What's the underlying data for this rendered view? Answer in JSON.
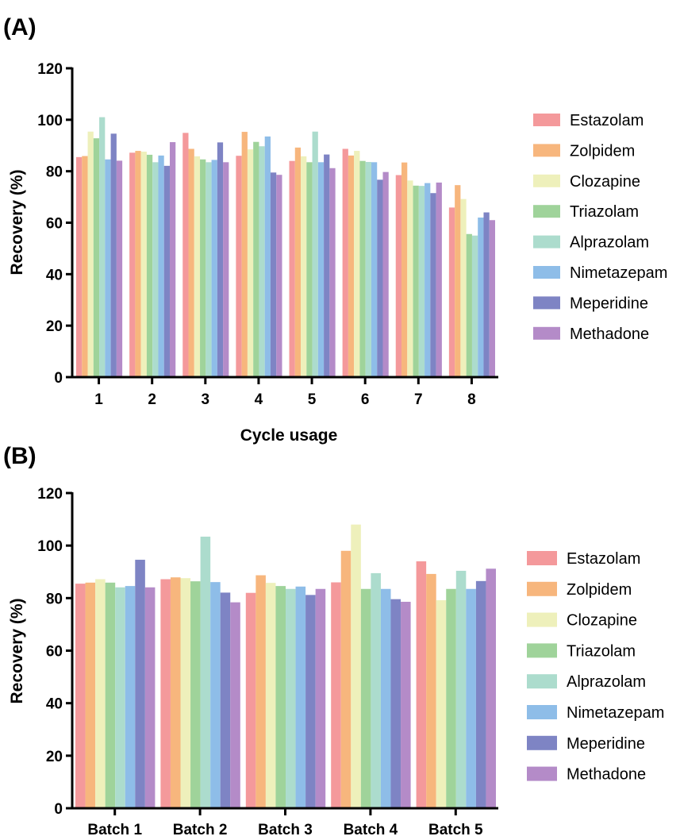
{
  "colors": {
    "Estazolam": "#f4999b",
    "Zolpidem": "#f7b67d",
    "Clozapine": "#eef0bb",
    "Triazolam": "#9fd39a",
    "Alprazolam": "#acdccd",
    "Nimetazepam": "#8ebde8",
    "Meperidine": "#7e84c4",
    "Methadone": "#b48bc8"
  },
  "chart_data": [
    {
      "panel_label": "(A)",
      "type": "bar",
      "xlabel": "Cycle usage",
      "ylabel": "Recovery (%)",
      "ylim": [
        0,
        120
      ],
      "yticks": [
        "0",
        "20",
        "40",
        "60",
        "80",
        "100",
        "120"
      ],
      "categories": [
        "1",
        "2",
        "3",
        "4",
        "5",
        "6",
        "7",
        "8"
      ],
      "legend_position": "right",
      "grid": false,
      "series": [
        {
          "name": "Estazolam",
          "values": [
            85.5,
            87.2,
            94.9,
            86.0,
            84.0,
            88.7,
            78.5,
            65.9
          ]
        },
        {
          "name": "Zolpidem",
          "values": [
            85.9,
            87.9,
            88.7,
            95.3,
            89.2,
            86.1,
            83.4,
            74.6
          ]
        },
        {
          "name": "Clozapine",
          "values": [
            95.4,
            87.6,
            85.8,
            88.5,
            85.8,
            87.9,
            76.4,
            69.2
          ]
        },
        {
          "name": "Triazolam",
          "values": [
            92.8,
            86.4,
            84.6,
            91.4,
            83.5,
            84.0,
            74.4,
            55.6
          ]
        },
        {
          "name": "Alprazolam",
          "values": [
            101.0,
            83.5,
            83.5,
            89.7,
            95.4,
            83.6,
            74.3,
            55.0
          ]
        },
        {
          "name": "Nimetazepam",
          "values": [
            84.6,
            86.1,
            84.4,
            93.5,
            83.5,
            83.5,
            75.4,
            62.0
          ]
        },
        {
          "name": "Meperidine",
          "values": [
            94.6,
            82.1,
            91.2,
            79.5,
            86.5,
            76.7,
            71.5,
            64.0
          ]
        },
        {
          "name": "Methadone",
          "values": [
            84.1,
            91.3,
            83.5,
            78.6,
            81.2,
            79.7,
            75.6,
            61.0
          ]
        }
      ]
    },
    {
      "panel_label": "(B)",
      "type": "bar",
      "xlabel": "",
      "ylabel": "Recovery (%)",
      "ylim": [
        0,
        120
      ],
      "yticks": [
        "0",
        "20",
        "40",
        "60",
        "80",
        "100",
        "120"
      ],
      "categories": [
        "Batch 1",
        "Batch 2",
        "Batch 3",
        "Batch 4",
        "Batch 5"
      ],
      "legend_position": "right",
      "grid": false,
      "series": [
        {
          "name": "Estazolam",
          "values": [
            85.5,
            87.2,
            82.0,
            86.0,
            94.0
          ]
        },
        {
          "name": "Zolpidem",
          "values": [
            85.9,
            87.9,
            88.7,
            98.0,
            89.2
          ]
        },
        {
          "name": "Clozapine",
          "values": [
            87.2,
            87.6,
            85.8,
            108.0,
            79.2
          ]
        },
        {
          "name": "Triazolam",
          "values": [
            85.9,
            86.4,
            84.6,
            83.5,
            83.5
          ]
        },
        {
          "name": "Alprazolam",
          "values": [
            84.1,
            103.4,
            83.5,
            89.5,
            90.4
          ]
        },
        {
          "name": "Nimetazepam",
          "values": [
            84.6,
            86.1,
            84.4,
            83.5,
            83.5
          ]
        },
        {
          "name": "Meperidine",
          "values": [
            94.6,
            82.1,
            81.2,
            79.6,
            86.5
          ]
        },
        {
          "name": "Methadone",
          "values": [
            84.1,
            78.4,
            83.5,
            78.6,
            91.2
          ]
        }
      ]
    }
  ]
}
